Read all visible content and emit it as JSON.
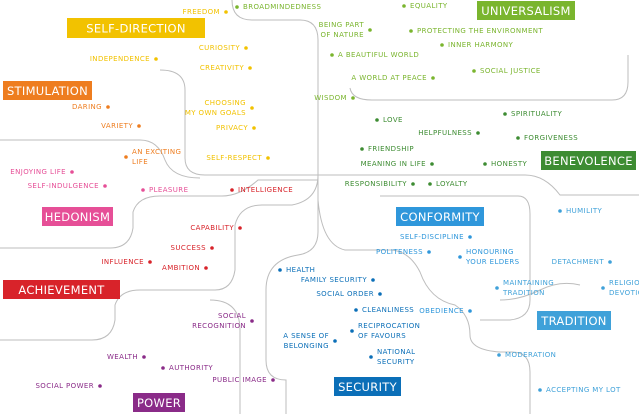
{
  "groups": [
    {
      "label": "SELF-DIRECTION",
      "color": "#f2c200",
      "items": [
        {
          "lines": [
            "FREEDOM"
          ]
        },
        {
          "lines": [
            "CURIOSITY"
          ]
        },
        {
          "lines": [
            "INDEPENDENCE"
          ]
        },
        {
          "lines": [
            "CREATIVITY"
          ]
        },
        {
          "lines": [
            "CHOOSING",
            "MY OWN GOALS"
          ]
        },
        {
          "lines": [
            "PRIVACY"
          ]
        },
        {
          "lines": [
            "SELF-RESPECT"
          ]
        }
      ]
    },
    {
      "label": "STIMULATION",
      "color": "#ee7d1f",
      "items": [
        {
          "lines": [
            "DARING"
          ]
        },
        {
          "lines": [
            "VARIETY"
          ]
        },
        {
          "lines": [
            "AN EXCITING",
            "LIFE"
          ]
        }
      ]
    },
    {
      "label": "HEDONISM",
      "color": "#e64f97",
      "items": [
        {
          "lines": [
            "ENJOYING LIFE"
          ]
        },
        {
          "lines": [
            "SELF-INDULGENCE"
          ]
        },
        {
          "lines": [
            "PLEASURE"
          ]
        }
      ]
    },
    {
      "label": "ACHIEVEMENT",
      "color": "#d8232a",
      "items": [
        {
          "lines": [
            "INTELLIGENCE"
          ]
        },
        {
          "lines": [
            "CAPABILITY"
          ]
        },
        {
          "lines": [
            "SUCCESS"
          ]
        },
        {
          "lines": [
            "INFLUENCE"
          ]
        },
        {
          "lines": [
            "AMBITION"
          ]
        }
      ]
    },
    {
      "label": "POWER",
      "color": "#8a2b88",
      "items": [
        {
          "lines": [
            "SOCIAL",
            "RECOGNITION"
          ]
        },
        {
          "lines": [
            "WEALTH"
          ]
        },
        {
          "lines": [
            "AUTHORITY"
          ]
        },
        {
          "lines": [
            "PUBLIC IMAGE"
          ]
        },
        {
          "lines": [
            "SOCIAL POWER"
          ]
        }
      ]
    },
    {
      "label": "SECURITY",
      "color": "#0b6fb8",
      "items": [
        {
          "lines": [
            "HEALTH"
          ]
        },
        {
          "lines": [
            "FAMILY SECURITY"
          ]
        },
        {
          "lines": [
            "SOCIAL ORDER"
          ]
        },
        {
          "lines": [
            "CLEANLINESS"
          ]
        },
        {
          "lines": [
            "RECIPROCATION",
            "OF FAVOURS"
          ]
        },
        {
          "lines": [
            "A SENSE OF",
            "BELONGING"
          ]
        },
        {
          "lines": [
            "NATIONAL",
            "SECURITY"
          ]
        }
      ]
    },
    {
      "label": "CONFORMITY",
      "color": "#2f97db",
      "items": [
        {
          "lines": [
            "SELF-DISCIPLINE"
          ]
        },
        {
          "lines": [
            "POLITENESS"
          ]
        },
        {
          "lines": [
            "HONOURING",
            "YOUR ELDERS"
          ]
        },
        {
          "lines": [
            "OBEDIENCE"
          ]
        }
      ]
    },
    {
      "label": "TRADITION",
      "color": "#3fa1d9",
      "items": [
        {
          "lines": [
            "HUMILITY"
          ]
        },
        {
          "lines": [
            "DETACHMENT"
          ]
        },
        {
          "lines": [
            "MAINTAINING",
            "TRADITION"
          ]
        },
        {
          "lines": [
            "RELIGIOUS",
            "DEVOTION"
          ]
        },
        {
          "lines": [
            "MODERATION"
          ]
        },
        {
          "lines": [
            "ACCEPTING MY LOT"
          ]
        }
      ]
    },
    {
      "label": "BENEVOLENCE",
      "color": "#3d8c32",
      "items": [
        {
          "lines": [
            "SPIRITUALITY"
          ]
        },
        {
          "lines": [
            "LOVE"
          ]
        },
        {
          "lines": [
            "HELPFULNESS"
          ]
        },
        {
          "lines": [
            "FORGIVENESS"
          ]
        },
        {
          "lines": [
            "FRIENDSHIP"
          ]
        },
        {
          "lines": [
            "MEANING IN LIFE"
          ]
        },
        {
          "lines": [
            "HONESTY"
          ]
        },
        {
          "lines": [
            "RESPONSIBILITY"
          ]
        },
        {
          "lines": [
            "LOYALTY"
          ]
        }
      ]
    },
    {
      "label": "UNIVERSALISM",
      "color": "#7ab52e",
      "items": [
        {
          "lines": [
            "BROADMINDEDNESS"
          ]
        },
        {
          "lines": [
            "EQUALITY"
          ]
        },
        {
          "lines": [
            "BEING PART",
            "OF NATURE"
          ]
        },
        {
          "lines": [
            "PROTECTING THE ENVIRONMENT"
          ]
        },
        {
          "lines": [
            "INNER HARMONY"
          ]
        },
        {
          "lines": [
            "A BEAUTIFUL WORLD"
          ]
        },
        {
          "lines": [
            "SOCIAL JUSTICE"
          ]
        },
        {
          "lines": [
            "A WORLD AT PEACE"
          ]
        },
        {
          "lines": [
            "WISDOM"
          ]
        }
      ]
    }
  ]
}
